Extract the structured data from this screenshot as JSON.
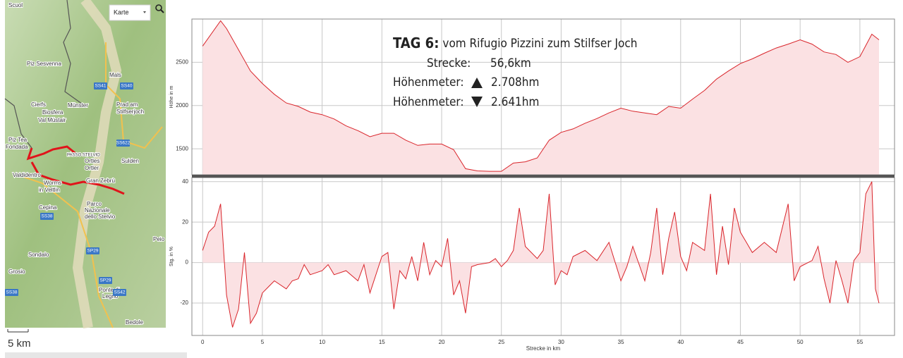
{
  "map": {
    "dropdown": "Karte",
    "scale": "5 km",
    "places": [
      "Scuol",
      "Mals",
      "Piz Sesvenna",
      "Münster",
      "Cierfs",
      "Biosfera",
      "Val Müstair",
      "Prad am",
      "Stilfserjoch",
      "Ortles",
      "Ortler",
      "Sulden",
      "Piz Tea",
      "Fondada",
      "Valdidentro",
      "Worms",
      "in Veltlin",
      "Gran Zebrù",
      "Cepina",
      "Parco",
      "Nazionale",
      "dello Stelvio",
      "Sondalo",
      "Grosio",
      "Ponte di",
      "Legno",
      "Bedole",
      "Peio",
      "PASSO STELVIO"
    ],
    "roads": [
      "SS41",
      "SS40",
      "SS622",
      "SS38",
      "SP29",
      "SP29",
      "SS42",
      "SS38"
    ]
  },
  "overlay": {
    "day": "TAG 6:",
    "route": "vom Rifugio Pizzini zum Stilfser Joch",
    "distance_label": "Strecke:",
    "distance": "56,6km",
    "ascent_label": "Höhenmeter:",
    "ascent": "2.708hm",
    "descent_label": "Höhenmeter:",
    "descent": "2.641hm"
  },
  "chart_data": [
    {
      "type": "area",
      "y_label": "Höhe in m",
      "color": "#d9252b",
      "fill": "#fbe1e3",
      "grid": true,
      "xlim": [
        -0.9,
        57.9
      ],
      "xticks": [
        0,
        5,
        10,
        15,
        20,
        25,
        30,
        35,
        40,
        45,
        50,
        55
      ],
      "ylim": [
        1200,
        3000
      ],
      "yticks": [
        1500,
        2000,
        2500
      ],
      "x": [
        0,
        1.5,
        2,
        3,
        4,
        5,
        6,
        7,
        8,
        9,
        10,
        11,
        12,
        13,
        14,
        15,
        16,
        17,
        18,
        19,
        20,
        21,
        22,
        23,
        24,
        25,
        26,
        27,
        28,
        29,
        30,
        31,
        32,
        33,
        34,
        35,
        36,
        37,
        38,
        39,
        40,
        41,
        42,
        43,
        44,
        45,
        46,
        47,
        48,
        49,
        50,
        51,
        52,
        53,
        54,
        55,
        56,
        56.6
      ],
      "values": [
        2687,
        2980,
        2890,
        2645,
        2400,
        2255,
        2130,
        2030,
        1990,
        1925,
        1895,
        1845,
        1765,
        1710,
        1640,
        1680,
        1680,
        1600,
        1540,
        1555,
        1555,
        1490,
        1270,
        1245,
        1240,
        1240,
        1335,
        1350,
        1395,
        1600,
        1690,
        1730,
        1795,
        1850,
        1915,
        1970,
        1935,
        1915,
        1895,
        1990,
        1970,
        2075,
        2175,
        2305,
        2400,
        2485,
        2540,
        2605,
        2665,
        2710,
        2760,
        2710,
        2620,
        2590,
        2500,
        2565,
        2825,
        2760
      ]
    },
    {
      "type": "area",
      "y_label": "Stg. in %",
      "x_label": "Strecke in km",
      "color": "#d9252b",
      "fill": "#fbe1e3",
      "grid": true,
      "xlim": [
        -0.9,
        57.9
      ],
      "xticks": [
        0,
        5,
        10,
        15,
        20,
        25,
        30,
        35,
        40,
        45,
        50,
        55
      ],
      "ylim": [
        -36,
        42
      ],
      "yticks": [
        -20,
        0,
        20,
        40
      ],
      "x": [
        0,
        0.5,
        1,
        1.5,
        2,
        2.5,
        3,
        3.5,
        4,
        4.5,
        5,
        5.5,
        6,
        7,
        7.5,
        8,
        8.5,
        9,
        10,
        10.5,
        11,
        12,
        13,
        13.5,
        14,
        15,
        15.5,
        16,
        16.5,
        17,
        17.5,
        18,
        18.5,
        19,
        19.5,
        20,
        20.5,
        21,
        21.5,
        22,
        22.5,
        23,
        24,
        24.5,
        25,
        25.5,
        26,
        26.5,
        27,
        28,
        28.5,
        29,
        29.5,
        30,
        30.5,
        31,
        32,
        33,
        34,
        35,
        35.5,
        36,
        37,
        37.5,
        38,
        38.5,
        39,
        39.5,
        40,
        40.5,
        41,
        42,
        42.5,
        43,
        43.5,
        44,
        44.5,
        45,
        45.5,
        46,
        47,
        48,
        49,
        49.5,
        50,
        51,
        51.5,
        52,
        52.5,
        53,
        53.5,
        54,
        54.5,
        55,
        55.5,
        56,
        56.3,
        56.6
      ],
      "values": [
        6,
        15,
        18,
        29,
        -16,
        -32,
        -23,
        5,
        -30,
        -25,
        -15,
        -12,
        -9,
        -13,
        -9,
        -8,
        -1,
        -6,
        -4,
        -1,
        -6,
        -4,
        -9,
        -1,
        -15,
        3,
        5,
        -23,
        -4,
        -8,
        3,
        -9,
        10,
        -6,
        1,
        -2,
        12,
        -16,
        -9,
        -25,
        -2,
        -1,
        0,
        2,
        -2,
        1,
        6,
        27,
        8,
        2,
        6,
        34,
        -11,
        -4,
        -6,
        3,
        6,
        1,
        10,
        -9,
        -2,
        8,
        -9,
        5,
        27,
        -6,
        12,
        25,
        3,
        -4,
        10,
        6,
        34,
        -6,
        18,
        -1,
        27,
        15,
        10,
        5,
        10,
        5,
        29,
        -9,
        -2,
        1,
        8,
        -8,
        -20,
        1,
        -9,
        -20,
        1,
        5,
        34,
        40,
        -13,
        -20
      ]
    }
  ]
}
